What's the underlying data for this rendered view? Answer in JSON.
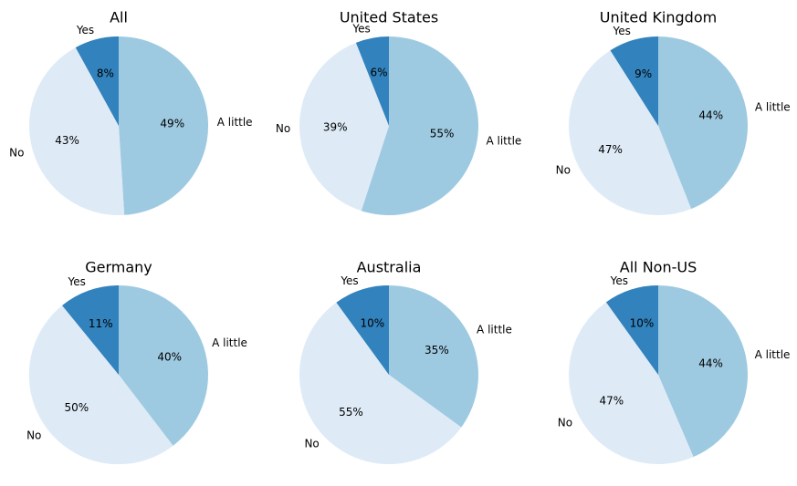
{
  "colors": {
    "A little": "#9ecae1",
    "No": "#deebf7",
    "Yes": "#3182bd"
  },
  "chart_data": [
    {
      "type": "pie",
      "title": "All",
      "labels": [
        "A little",
        "No",
        "Yes"
      ],
      "values": [
        49,
        43,
        8
      ],
      "value_labels": [
        "49%",
        "43%",
        "8%"
      ]
    },
    {
      "type": "pie",
      "title": "United States",
      "labels": [
        "A little",
        "No",
        "Yes"
      ],
      "values": [
        55,
        39,
        6
      ],
      "value_labels": [
        "55%",
        "39%",
        "6%"
      ]
    },
    {
      "type": "pie",
      "title": "United Kingdom",
      "labels": [
        "A little",
        "No",
        "Yes"
      ],
      "values": [
        44,
        47,
        9
      ],
      "value_labels": [
        "44%",
        "47%",
        "9%"
      ]
    },
    {
      "type": "pie",
      "title": "Germany",
      "labels": [
        "A little",
        "No",
        "Yes"
      ],
      "values": [
        40,
        50,
        11
      ],
      "value_labels": [
        "40%",
        "50%",
        "11%"
      ]
    },
    {
      "type": "pie",
      "title": "Australia",
      "labels": [
        "A little",
        "No",
        "Yes"
      ],
      "values": [
        35,
        55,
        10
      ],
      "value_labels": [
        "35%",
        "55%",
        "10%"
      ]
    },
    {
      "type": "pie",
      "title": "All Non-US",
      "labels": [
        "A little",
        "No",
        "Yes"
      ],
      "values": [
        44,
        47,
        10
      ],
      "value_labels": [
        "44%",
        "47%",
        "10%"
      ]
    }
  ]
}
